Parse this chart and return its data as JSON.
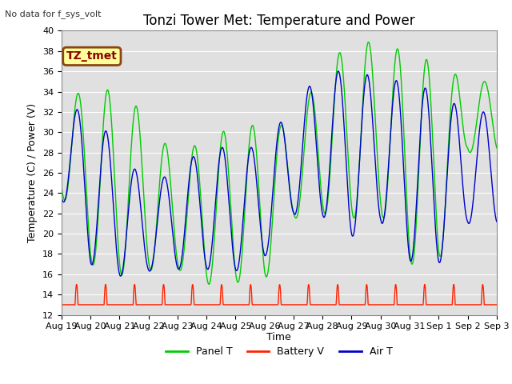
{
  "title": "Tonzi Tower Met: Temperature and Power",
  "ylabel": "Temperature (C) / Power (V)",
  "xlabel": "Time",
  "no_data_text": "No data for f_sys_volt",
  "legend_box_text": "TZ_tmet",
  "ylim": [
    12,
    40
  ],
  "yticks": [
    12,
    14,
    16,
    18,
    20,
    22,
    24,
    26,
    28,
    30,
    32,
    34,
    36,
    38,
    40
  ],
  "xtick_labels": [
    "Aug 19",
    "Aug 20",
    "Aug 21",
    "Aug 22",
    "Aug 23",
    "Aug 24",
    "Aug 25",
    "Aug 26",
    "Aug 27",
    "Aug 28",
    "Aug 29",
    "Aug 30",
    "Aug 31",
    "Sep 1",
    "Sep 2",
    "Sep 3"
  ],
  "panel_color": "#00cc00",
  "battery_color": "#ff2200",
  "air_color": "#0000cc",
  "background_color": "#e0e0e0",
  "panel_label": "Panel T",
  "battery_label": "Battery V",
  "air_label": "Air T",
  "days": 15,
  "panel_peaks": [
    35.0,
    33.0,
    35.0,
    30.8,
    27.5,
    29.5,
    30.5,
    30.8,
    30.6,
    36.2,
    39.0,
    38.8,
    37.8,
    36.7,
    35.0
  ],
  "panel_troughs": [
    24.0,
    17.0,
    15.9,
    16.4,
    16.5,
    15.0,
    15.2,
    15.3,
    21.5,
    22.0,
    21.5,
    22.0,
    17.0,
    17.0,
    28.0
  ],
  "air_peaks": [
    32.5,
    32.0,
    28.5,
    24.5,
    26.5,
    28.5,
    28.5,
    28.5,
    33.0,
    35.8,
    36.2,
    35.2,
    35.0,
    33.8,
    32.0
  ],
  "air_troughs": [
    23.5,
    17.0,
    15.8,
    16.3,
    16.5,
    16.5,
    16.3,
    17.7,
    21.9,
    21.7,
    19.7,
    21.2,
    17.3,
    17.0,
    21.0
  ],
  "battery_base": 13.0,
  "battery_peak": 15.0,
  "title_fontsize": 12,
  "axis_fontsize": 9,
  "tick_fontsize": 8,
  "legend_fontsize": 9
}
